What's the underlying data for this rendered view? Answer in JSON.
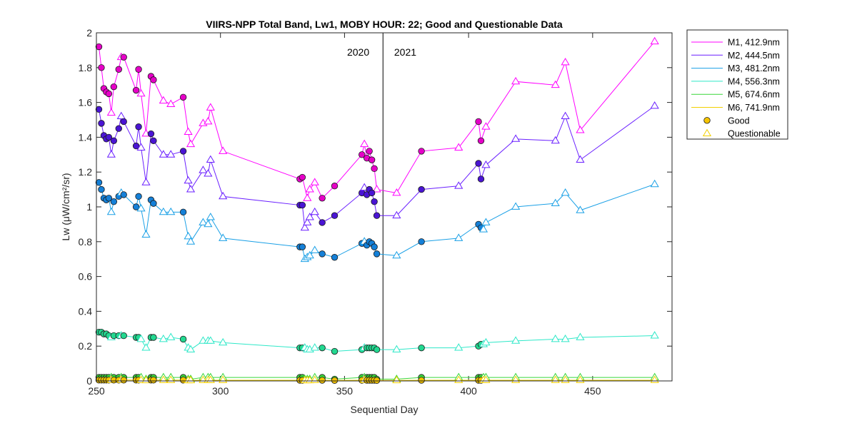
{
  "chart_data": {
    "type": "line",
    "title": "VIIRS-NPP Total Band,  Lw1, MOBY HOUR: 22;  Good and Questionable Data",
    "xlabel": "Sequential Day",
    "ylabel": "Lw (μW/cm²/sr)",
    "xlim": [
      250,
      482
    ],
    "ylim": [
      0,
      2
    ],
    "xticks": [
      250,
      300,
      350,
      400,
      450
    ],
    "yticks": [
      0,
      0.2,
      0.4,
      0.6,
      0.8,
      1,
      1.2,
      1.4,
      1.6,
      1.8,
      2
    ],
    "grid": false,
    "legend_position": "outside-top-right",
    "vline": {
      "x": 365.5
    },
    "annotations": [
      {
        "text": "2020",
        "x": 360,
        "y": 1.89
      },
      {
        "text": "2021",
        "x": 370,
        "y": 1.89
      }
    ],
    "marker_legend": [
      {
        "label": "Good",
        "marker": "circle"
      },
      {
        "label": "Questionable",
        "marker": "triangle"
      }
    ],
    "series": [
      {
        "name": "M1, 412.9nm",
        "color": "#ff00ff",
        "marker_fill": "#e600c8",
        "x": [
          251,
          252,
          253,
          254,
          255,
          256,
          257,
          259,
          260,
          261,
          266,
          267,
          268,
          270,
          272,
          273,
          277,
          280,
          285,
          287,
          288,
          293,
          295,
          296,
          301,
          332,
          333,
          335,
          336,
          338,
          341,
          346,
          357,
          358,
          359,
          360,
          361,
          362,
          363,
          371,
          381,
          396,
          404,
          405,
          407,
          419,
          435,
          439,
          445,
          475
        ],
        "y": [
          1.92,
          1.8,
          1.68,
          1.66,
          1.65,
          1.54,
          1.69,
          1.79,
          1.86,
          1.86,
          1.67,
          1.79,
          1.65,
          1.42,
          1.75,
          1.73,
          1.61,
          1.59,
          1.63,
          1.43,
          1.36,
          1.48,
          1.49,
          1.57,
          1.32,
          1.16,
          1.17,
          1.05,
          1.1,
          1.14,
          1.05,
          1.12,
          1.3,
          1.36,
          1.28,
          1.32,
          1.27,
          1.22,
          1.1,
          1.08,
          1.32,
          1.34,
          1.49,
          1.38,
          1.46,
          1.72,
          1.7,
          1.83,
          1.44,
          1.95
        ],
        "quality": [
          "G",
          "G",
          "G",
          "G",
          "G",
          "Q",
          "G",
          "G",
          "Q",
          "G",
          "G",
          "G",
          "Q",
          "Q",
          "G",
          "G",
          "Q",
          "Q",
          "G",
          "Q",
          "Q",
          "Q",
          "Q",
          "Q",
          "Q",
          "G",
          "G",
          "Q",
          "Q",
          "Q",
          "G",
          "G",
          "G",
          "Q",
          "G",
          "G",
          "G",
          "G",
          "Q",
          "Q",
          "G",
          "Q",
          "G",
          "G",
          "Q",
          "Q",
          "Q",
          "Q",
          "Q",
          "Q"
        ]
      },
      {
        "name": "M2, 444.5nm",
        "color": "#6a1fff",
        "marker_fill": "#4a14d4",
        "x": [
          251,
          252,
          253,
          254,
          255,
          256,
          257,
          259,
          260,
          261,
          266,
          267,
          268,
          270,
          272,
          273,
          277,
          280,
          285,
          287,
          288,
          293,
          295,
          296,
          301,
          332,
          333,
          334,
          335,
          336,
          338,
          341,
          346,
          357,
          358,
          359,
          360,
          361,
          362,
          363,
          371,
          381,
          396,
          404,
          405,
          407,
          419,
          435,
          439,
          445,
          475
        ],
        "y": [
          1.56,
          1.48,
          1.41,
          1.39,
          1.4,
          1.3,
          1.38,
          1.45,
          1.52,
          1.49,
          1.35,
          1.46,
          1.34,
          1.14,
          1.42,
          1.38,
          1.3,
          1.3,
          1.32,
          1.15,
          1.1,
          1.21,
          1.19,
          1.27,
          1.06,
          1.01,
          1.01,
          0.88,
          0.91,
          0.94,
          0.97,
          0.91,
          0.95,
          1.08,
          1.11,
          1.07,
          1.1,
          1.08,
          1.03,
          0.95,
          0.95,
          1.1,
          1.12,
          1.25,
          1.16,
          1.24,
          1.39,
          1.38,
          1.52,
          1.27,
          1.58
        ],
        "quality": [
          "G",
          "G",
          "G",
          "G",
          "G",
          "Q",
          "G",
          "G",
          "Q",
          "G",
          "G",
          "G",
          "Q",
          "Q",
          "G",
          "G",
          "Q",
          "Q",
          "G",
          "Q",
          "Q",
          "Q",
          "Q",
          "Q",
          "Q",
          "G",
          "G",
          "Q",
          "Q",
          "Q",
          "Q",
          "G",
          "G",
          "G",
          "Q",
          "G",
          "G",
          "G",
          "G",
          "G",
          "Q",
          "G",
          "Q",
          "G",
          "G",
          "Q",
          "Q",
          "Q",
          "Q",
          "Q",
          "Q"
        ]
      },
      {
        "name": "M3, 481.2nm",
        "color": "#1aa0e6",
        "marker_fill": "#1480d8",
        "x": [
          251,
          252,
          253,
          254,
          255,
          256,
          257,
          259,
          260,
          261,
          266,
          267,
          268,
          270,
          272,
          273,
          277,
          280,
          285,
          287,
          288,
          293,
          295,
          296,
          301,
          332,
          333,
          334,
          335,
          336,
          338,
          341,
          346,
          357,
          358,
          359,
          360,
          361,
          362,
          363,
          371,
          381,
          396,
          404,
          405,
          406,
          407,
          419,
          435,
          439,
          445,
          475
        ],
        "y": [
          1.14,
          1.1,
          1.05,
          1.04,
          1.05,
          0.97,
          1.03,
          1.06,
          1.08,
          1.07,
          1.0,
          1.06,
          0.99,
          0.84,
          1.04,
          1.02,
          0.97,
          0.97,
          0.97,
          0.83,
          0.8,
          0.91,
          0.9,
          0.94,
          0.82,
          0.77,
          0.77,
          0.7,
          0.71,
          0.72,
          0.75,
          0.73,
          0.71,
          0.79,
          0.8,
          0.78,
          0.8,
          0.79,
          0.77,
          0.73,
          0.72,
          0.8,
          0.82,
          0.9,
          0.88,
          0.87,
          0.91,
          1.0,
          1.02,
          1.08,
          0.98,
          1.13
        ],
        "quality": [
          "G",
          "G",
          "G",
          "G",
          "G",
          "Q",
          "G",
          "G",
          "Q",
          "G",
          "G",
          "G",
          "Q",
          "Q",
          "G",
          "G",
          "Q",
          "Q",
          "G",
          "Q",
          "Q",
          "Q",
          "Q",
          "Q",
          "Q",
          "G",
          "G",
          "Q",
          "Q",
          "Q",
          "Q",
          "G",
          "G",
          "G",
          "Q",
          "G",
          "G",
          "G",
          "G",
          "G",
          "Q",
          "G",
          "Q",
          "G",
          "G",
          "Q",
          "Q",
          "Q",
          "Q",
          "Q",
          "Q",
          "Q"
        ]
      },
      {
        "name": "M4, 556.3nm",
        "color": "#2ee8c8",
        "marker_fill": "#22d890",
        "x": [
          251,
          252,
          253,
          254,
          255,
          256,
          257,
          259,
          260,
          261,
          266,
          267,
          268,
          270,
          272,
          273,
          277,
          280,
          285,
          287,
          288,
          293,
          295,
          296,
          301,
          332,
          333,
          334,
          335,
          336,
          338,
          341,
          346,
          357,
          358,
          359,
          360,
          361,
          362,
          363,
          371,
          381,
          396,
          404,
          405,
          406,
          407,
          419,
          435,
          439,
          445,
          475
        ],
        "y": [
          0.28,
          0.28,
          0.27,
          0.27,
          0.26,
          0.25,
          0.26,
          0.26,
          0.26,
          0.26,
          0.25,
          0.25,
          0.24,
          0.19,
          0.25,
          0.25,
          0.24,
          0.25,
          0.24,
          0.19,
          0.18,
          0.23,
          0.23,
          0.23,
          0.22,
          0.19,
          0.19,
          0.19,
          0.18,
          0.18,
          0.19,
          0.19,
          0.17,
          0.18,
          0.19,
          0.19,
          0.19,
          0.19,
          0.19,
          0.18,
          0.18,
          0.19,
          0.19,
          0.2,
          0.21,
          0.21,
          0.22,
          0.23,
          0.24,
          0.24,
          0.25,
          0.26
        ],
        "quality": [
          "G",
          "G",
          "G",
          "G",
          "G",
          "Q",
          "G",
          "G",
          "Q",
          "G",
          "G",
          "G",
          "Q",
          "Q",
          "G",
          "G",
          "Q",
          "Q",
          "G",
          "Q",
          "Q",
          "Q",
          "Q",
          "Q",
          "Q",
          "G",
          "G",
          "Q",
          "Q",
          "Q",
          "Q",
          "G",
          "G",
          "G",
          "Q",
          "G",
          "G",
          "G",
          "G",
          "G",
          "Q",
          "G",
          "Q",
          "G",
          "G",
          "Q",
          "Q",
          "Q",
          "Q",
          "Q",
          "Q",
          "Q"
        ]
      },
      {
        "name": "M5, 674.6nm",
        "color": "#3ad63a",
        "marker_fill": "#3ad63a",
        "x": [
          251,
          252,
          253,
          254,
          255,
          256,
          257,
          259,
          260,
          261,
          266,
          267,
          268,
          270,
          272,
          273,
          277,
          280,
          285,
          287,
          288,
          293,
          295,
          296,
          301,
          332,
          333,
          334,
          335,
          336,
          338,
          341,
          346,
          357,
          358,
          359,
          360,
          361,
          362,
          363,
          371,
          381,
          396,
          404,
          405,
          406,
          407,
          419,
          435,
          439,
          445,
          475
        ],
        "y": [
          0.02,
          0.02,
          0.02,
          0.02,
          0.02,
          0.02,
          0.02,
          0.02,
          0.02,
          0.02,
          0.02,
          0.02,
          0.02,
          0.01,
          0.02,
          0.02,
          0.02,
          0.02,
          0.02,
          0.01,
          0.01,
          0.02,
          0.02,
          0.02,
          0.02,
          0.02,
          0.02,
          0.01,
          0.01,
          0.01,
          0.02,
          0.02,
          0.01,
          0.02,
          0.02,
          0.02,
          0.02,
          0.02,
          0.02,
          0.01,
          0.01,
          0.02,
          0.02,
          0.02,
          0.02,
          0.02,
          0.02,
          0.02,
          0.02,
          0.02,
          0.02,
          0.02
        ],
        "quality": [
          "G",
          "G",
          "G",
          "G",
          "G",
          "Q",
          "G",
          "G",
          "Q",
          "G",
          "G",
          "G",
          "Q",
          "Q",
          "G",
          "G",
          "Q",
          "Q",
          "G",
          "Q",
          "Q",
          "Q",
          "Q",
          "Q",
          "Q",
          "G",
          "G",
          "Q",
          "Q",
          "Q",
          "Q",
          "G",
          "G",
          "G",
          "Q",
          "G",
          "G",
          "G",
          "G",
          "G",
          "Q",
          "G",
          "Q",
          "G",
          "G",
          "Q",
          "Q",
          "Q",
          "Q",
          "Q",
          "Q",
          "Q"
        ]
      },
      {
        "name": "M6, 741.9nm",
        "color": "#f2d000",
        "marker_fill": "#f2c200",
        "x": [
          251,
          252,
          253,
          254,
          255,
          256,
          257,
          259,
          260,
          261,
          266,
          267,
          268,
          270,
          272,
          273,
          277,
          280,
          285,
          287,
          288,
          293,
          295,
          296,
          301,
          332,
          333,
          334,
          335,
          336,
          338,
          341,
          346,
          357,
          358,
          359,
          360,
          361,
          362,
          363,
          371,
          381,
          396,
          404,
          405,
          406,
          407,
          419,
          435,
          439,
          445,
          475
        ],
        "y": [
          0.005,
          0.005,
          0.005,
          0.005,
          0.005,
          0.004,
          0.005,
          0.005,
          0.005,
          0.005,
          0.005,
          0.005,
          0.004,
          0.003,
          0.005,
          0.005,
          0.004,
          0.004,
          0.005,
          0.003,
          0.003,
          0.004,
          0.004,
          0.004,
          0.004,
          0.004,
          0.004,
          0.003,
          0.003,
          0.003,
          0.004,
          0.004,
          0.003,
          0.004,
          0.004,
          0.004,
          0.004,
          0.004,
          0.004,
          0.003,
          0.003,
          0.004,
          0.004,
          0.004,
          0.004,
          0.004,
          0.004,
          0.004,
          0.004,
          0.004,
          0.004,
          0.004
        ],
        "quality": [
          "G",
          "G",
          "G",
          "G",
          "G",
          "Q",
          "G",
          "G",
          "Q",
          "G",
          "G",
          "G",
          "Q",
          "Q",
          "G",
          "G",
          "Q",
          "Q",
          "G",
          "Q",
          "Q",
          "Q",
          "Q",
          "Q",
          "Q",
          "G",
          "G",
          "Q",
          "Q",
          "Q",
          "Q",
          "G",
          "G",
          "G",
          "Q",
          "G",
          "G",
          "G",
          "G",
          "G",
          "Q",
          "G",
          "Q",
          "G",
          "G",
          "Q",
          "Q",
          "Q",
          "Q",
          "Q",
          "Q",
          "Q"
        ]
      }
    ]
  }
}
